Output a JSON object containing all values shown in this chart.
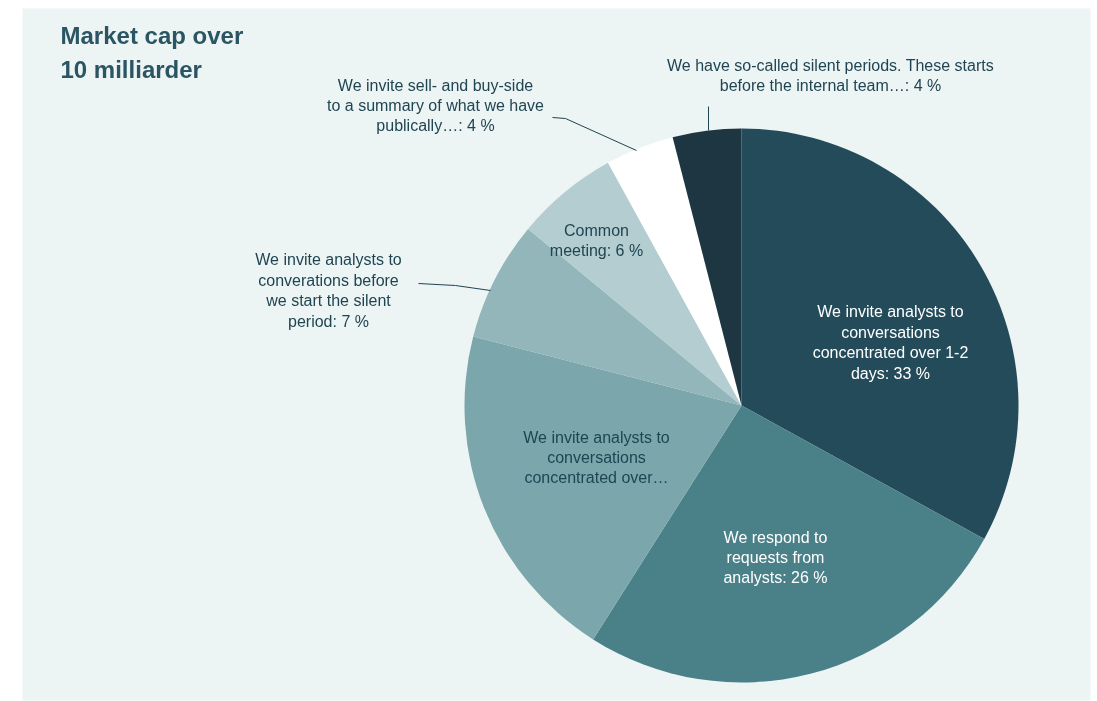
{
  "chart_data": {
    "type": "pie",
    "title": "Market cap over 10 milliarder",
    "categories": [
      "We invite analysts to conversations concentrated over 1-2 days",
      "We respond to requests from analysts",
      "We invite analysts to conversations concentrated over…",
      "We invite analysts to converations before we start the silent period",
      "Common meeting",
      "We invite sell- and buy-side to a summary of what we have publically…",
      "We have so-called silent periods. These starts before the internal team…"
    ],
    "values": [
      33,
      26,
      20,
      7,
      6,
      4,
      4
    ],
    "value_labels": [
      "33 %",
      "26 %",
      null,
      "7 %",
      "6 %",
      "4 %",
      "4 %"
    ],
    "colors": [
      "#244b5a",
      "#4a8189",
      "#7ba6ac",
      "#92b6ba",
      "#b3cdd0",
      "#ffffff",
      "#1d3642"
    ]
  }
}
